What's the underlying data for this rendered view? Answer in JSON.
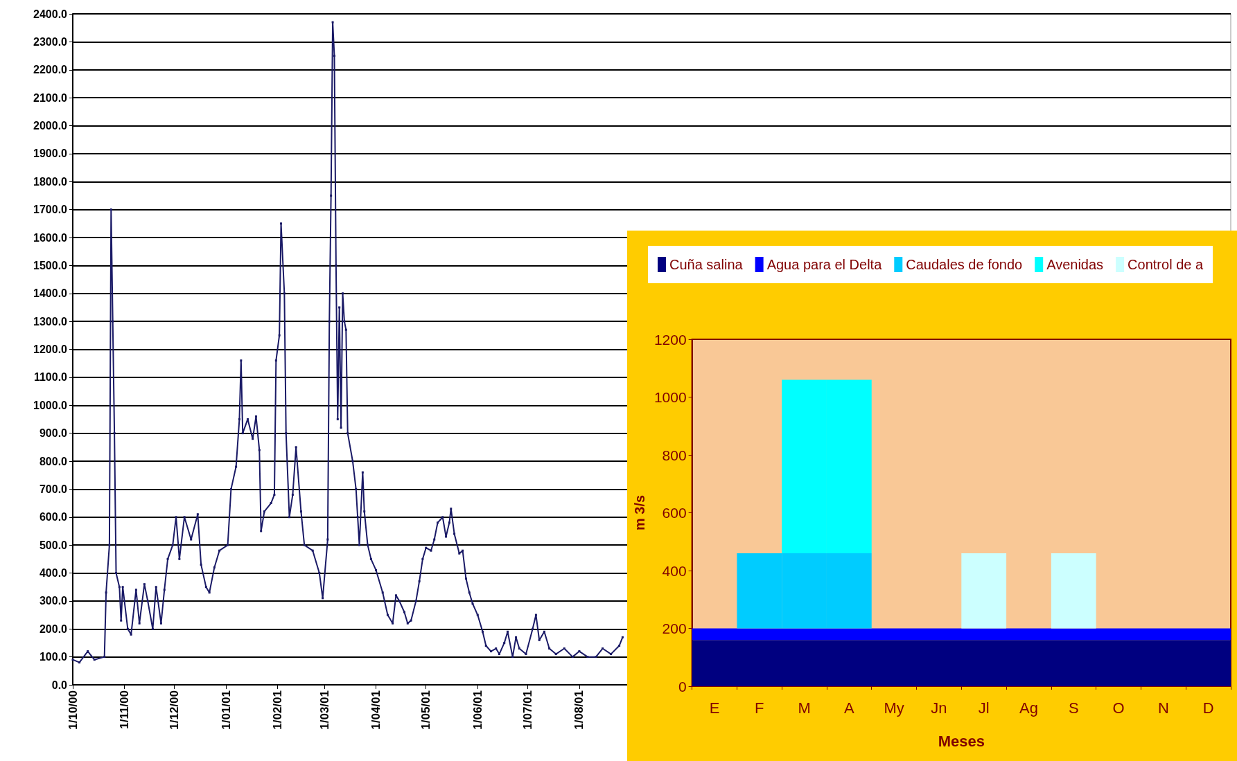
{
  "chart_data": [
    {
      "type": "line",
      "line_style": "solid",
      "marker": "square",
      "grid": "y",
      "x": [
        "2000-10-01",
        "2000-10-05",
        "2000-10-10",
        "2000-10-14",
        "2000-10-20",
        "2000-10-21",
        "2000-10-23",
        "2000-10-24",
        "2000-10-25",
        "2000-10-26",
        "2000-10-27",
        "2000-10-29",
        "2000-10-30",
        "2000-10-31",
        "2000-11-03",
        "2000-11-05",
        "2000-11-08",
        "2000-11-10",
        "2000-11-13",
        "2000-11-15",
        "2000-11-18",
        "2000-11-20",
        "2000-11-23",
        "2000-11-25",
        "2000-11-27",
        "2000-11-30",
        "2000-12-02",
        "2000-12-04",
        "2000-12-07",
        "2000-12-11",
        "2000-12-15",
        "2000-12-17",
        "2000-12-20",
        "2000-12-22",
        "2000-12-25",
        "2000-12-28",
        "2001-01-02",
        "2001-01-04",
        "2001-01-07",
        "2001-01-09",
        "2001-01-10",
        "2001-01-11",
        "2001-01-14",
        "2001-01-17",
        "2001-01-19",
        "2001-01-21",
        "2001-01-22",
        "2001-01-24",
        "2001-01-28",
        "2001-01-30",
        "2001-01-31",
        "2001-02-02",
        "2001-02-03",
        "2001-02-05",
        "2001-02-06",
        "2001-02-08",
        "2001-02-10",
        "2001-02-12",
        "2001-02-15",
        "2001-02-17",
        "2001-02-22",
        "2001-02-26",
        "2001-02-28",
        "2001-03-03",
        "2001-03-04",
        "2001-03-05",
        "2001-03-06",
        "2001-03-07",
        "2001-03-08",
        "2001-03-09",
        "2001-03-10",
        "2001-03-11",
        "2001-03-12",
        "2001-03-13",
        "2001-03-14",
        "2001-03-15",
        "2001-03-18",
        "2001-03-20",
        "2001-03-21",
        "2001-03-22",
        "2001-03-24",
        "2001-03-25",
        "2001-03-27",
        "2001-03-29",
        "2001-04-01",
        "2001-04-05",
        "2001-04-08",
        "2001-04-11",
        "2001-04-13",
        "2001-04-15",
        "2001-04-18",
        "2001-04-20",
        "2001-04-22",
        "2001-04-25",
        "2001-04-27",
        "2001-04-29",
        "2001-05-01",
        "2001-05-04",
        "2001-05-06",
        "2001-05-08",
        "2001-05-11",
        "2001-05-13",
        "2001-05-15",
        "2001-05-16",
        "2001-05-18",
        "2001-05-21",
        "2001-05-23",
        "2001-05-25",
        "2001-05-27",
        "2001-05-29",
        "2001-06-01",
        "2001-06-04",
        "2001-06-06",
        "2001-06-09",
        "2001-06-12",
        "2001-06-14",
        "2001-06-17",
        "2001-06-19",
        "2001-06-22",
        "2001-06-24",
        "2001-06-26",
        "2001-06-30",
        "2001-07-04",
        "2001-07-06",
        "2001-07-08",
        "2001-07-11",
        "2001-07-14",
        "2001-07-18",
        "2001-07-23",
        "2001-07-28",
        "2001-08-01",
        "2001-08-06",
        "2001-08-11",
        "2001-08-15",
        "2001-08-20",
        "2001-08-25",
        "2001-08-27"
      ],
      "series": [
        {
          "color": "#1a1a66",
          "values": [
            90,
            80,
            120,
            90,
            100,
            330,
            500,
            1700,
            1300,
            900,
            400,
            350,
            230,
            350,
            200,
            180,
            340,
            220,
            360,
            300,
            200,
            350,
            220,
            340,
            450,
            500,
            600,
            450,
            600,
            520,
            610,
            430,
            350,
            330,
            420,
            480,
            500,
            700,
            780,
            950,
            1160,
            900,
            950,
            880,
            960,
            840,
            550,
            620,
            650,
            680,
            1160,
            1250,
            1650,
            1400,
            900,
            600,
            680,
            850,
            620,
            500,
            480,
            400,
            310,
            520,
            1300,
            1750,
            2370,
            2250,
            1500,
            950,
            1350,
            920,
            1400,
            1300,
            1270,
            900,
            800,
            700,
            600,
            500,
            760,
            620,
            500,
            450,
            410,
            330,
            250,
            220,
            320,
            300,
            260,
            220,
            230,
            300,
            370,
            450,
            490,
            480,
            520,
            580,
            600,
            530,
            580,
            630,
            540,
            470,
            480,
            380,
            330,
            290,
            250,
            190,
            140,
            120,
            130,
            110,
            150,
            190,
            100,
            170,
            130,
            110,
            200,
            250,
            160,
            190,
            130,
            110,
            130,
            100,
            120,
            100,
            100,
            130,
            110,
            140,
            170
          ]
        }
      ],
      "xlim": [
        "2000-10-01",
        "2002-08-27"
      ],
      "xticks": [
        {
          "value": "2000-10-01",
          "label": "1/10/00"
        },
        {
          "value": "2000-11-01",
          "label": "1/11/00"
        },
        {
          "value": "2000-12-01",
          "label": "1/12/00"
        },
        {
          "value": "2001-01-01",
          "label": "1/01/01"
        },
        {
          "value": "2001-02-01",
          "label": "1/02/01"
        },
        {
          "value": "2001-03-01",
          "label": "1/03/01"
        },
        {
          "value": "2001-04-01",
          "label": "1/04/01"
        },
        {
          "value": "2001-05-01",
          "label": "1/05/01"
        },
        {
          "value": "2001-06-01",
          "label": "1/06/01"
        },
        {
          "value": "2001-07-01",
          "label": "1/07/01"
        },
        {
          "value": "2001-08-01",
          "label": "1/08/01"
        }
      ],
      "ylim": [
        0,
        2400
      ],
      "yticks": [
        {
          "value": 0,
          "label": "0.0"
        },
        {
          "value": 100,
          "label": "100.0"
        },
        {
          "value": 200,
          "label": "200.0"
        },
        {
          "value": 300,
          "label": "300.0"
        },
        {
          "value": 400,
          "label": "400.0"
        },
        {
          "value": 500,
          "label": "500.0"
        },
        {
          "value": 600,
          "label": "600.0"
        },
        {
          "value": 700,
          "label": "700.0"
        },
        {
          "value": 800,
          "label": "800.0"
        },
        {
          "value": 900,
          "label": "900.0"
        },
        {
          "value": 1000,
          "label": "1000.0"
        },
        {
          "value": 1100,
          "label": "1100.0"
        },
        {
          "value": 1200,
          "label": "1200.0"
        },
        {
          "value": 1300,
          "label": "1300.0"
        },
        {
          "value": 1400,
          "label": "1400.0"
        },
        {
          "value": 1500,
          "label": "1500.0"
        },
        {
          "value": 1600,
          "label": "1600.0"
        },
        {
          "value": 1700,
          "label": "1700.0"
        },
        {
          "value": 1800,
          "label": "1800.0"
        },
        {
          "value": 1900,
          "label": "1900.0"
        },
        {
          "value": 2000,
          "label": "2000.0"
        },
        {
          "value": 2100,
          "label": "2100.0"
        },
        {
          "value": 2200,
          "label": "2200.0"
        },
        {
          "value": 2300,
          "label": "2300.0"
        },
        {
          "value": 2400,
          "label": "2400.0"
        }
      ]
    },
    {
      "type": "bar",
      "legend": "top",
      "xlabel": "Meses",
      "ylabel": "m 3/s",
      "bands": [
        {
          "axis": "y",
          "from": 0,
          "to": 160,
          "label": "Cuña salina",
          "color": "#000080"
        },
        {
          "axis": "y",
          "from": 160,
          "to": 200,
          "label": "Agua para el Delta",
          "color": "#0000ff"
        }
      ],
      "categories": [
        "E",
        "F",
        "M",
        "A",
        "My",
        "Jn",
        "Jl",
        "Ag",
        "S",
        "O",
        "N",
        "D"
      ],
      "series": [
        {
          "name": "Caudales de fondo",
          "color": "#00ccff",
          "values": [
            null,
            260,
            260,
            260,
            null,
            null,
            null,
            null,
            null,
            null,
            null,
            null
          ],
          "base": [
            null,
            200,
            200,
            200,
            null,
            null,
            null,
            null,
            null,
            null,
            null,
            null
          ]
        },
        {
          "name": "Avenidas",
          "color": "#00ffff",
          "values": [
            null,
            null,
            600,
            600,
            null,
            null,
            null,
            null,
            null,
            null,
            null,
            null
          ],
          "base": [
            null,
            null,
            460,
            460,
            null,
            null,
            null,
            null,
            null,
            null,
            null,
            null
          ]
        },
        {
          "name": "Control de a",
          "color": "#ccffff",
          "values": [
            null,
            null,
            null,
            null,
            null,
            null,
            260,
            null,
            260,
            null,
            null,
            null
          ],
          "base": [
            null,
            null,
            null,
            null,
            null,
            null,
            200,
            null,
            200,
            null,
            null,
            null
          ]
        }
      ],
      "ylim": [
        0,
        1200
      ],
      "yticks": [
        0,
        200,
        400,
        600,
        800,
        1000,
        1200
      ]
    }
  ]
}
